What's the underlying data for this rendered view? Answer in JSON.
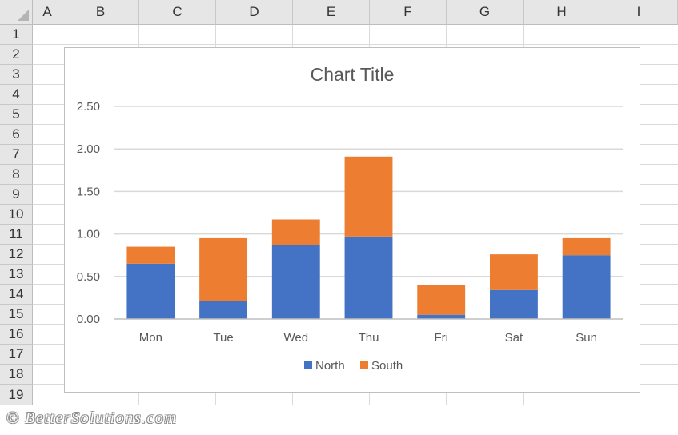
{
  "spreadsheet": {
    "columns": [
      "A",
      "B",
      "C",
      "D",
      "E",
      "F",
      "G",
      "H",
      "I"
    ],
    "rows": [
      "1",
      "2",
      "3",
      "4",
      "5",
      "6",
      "7",
      "8",
      "9",
      "10",
      "11",
      "12",
      "13",
      "14",
      "15",
      "16",
      "17",
      "18",
      "19"
    ]
  },
  "watermark": "© BetterSolutions.com",
  "chart_data": {
    "type": "bar",
    "stacked": true,
    "title": "Chart Title",
    "categories": [
      "Mon",
      "Tue",
      "Wed",
      "Thu",
      "Fri",
      "Sat",
      "Sun"
    ],
    "series": [
      {
        "name": "North",
        "color": "#4472c4",
        "values": [
          0.65,
          0.21,
          0.87,
          0.97,
          0.05,
          0.34,
          0.75
        ]
      },
      {
        "name": "South",
        "color": "#ed7d31",
        "values": [
          0.2,
          0.74,
          0.3,
          0.94,
          0.35,
          0.42,
          0.2
        ]
      }
    ],
    "yticks": [
      "0.00",
      "0.50",
      "1.00",
      "1.50",
      "2.00",
      "2.50"
    ],
    "ylim": [
      0,
      2.5
    ],
    "xlabel": "",
    "ylabel": "",
    "grid": true,
    "legend_position": "bottom"
  }
}
